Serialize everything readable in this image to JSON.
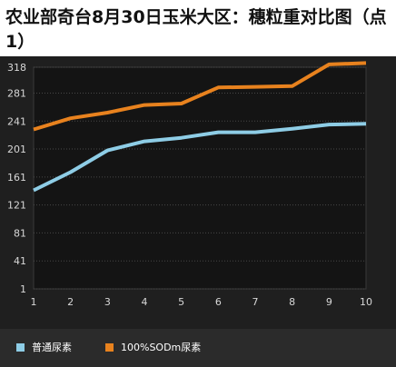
{
  "chart_data": {
    "type": "line",
    "title": "农业部奇台8月30日玉米大区：穗粒重对比图（点1）",
    "x": [
      1,
      2,
      3,
      4,
      5,
      6,
      7,
      8,
      9,
      10
    ],
    "xlabel": "",
    "ylabel": "",
    "ylim": [
      1,
      318
    ],
    "yticks": [
      1,
      41,
      81,
      121,
      161,
      201,
      241,
      281,
      318
    ],
    "grid": true,
    "legend_position": "bottom",
    "series": [
      {
        "name": "普通尿素",
        "color": "#8ecde6",
        "values": [
          142,
          168,
          199,
          212,
          217,
          225,
          225,
          230,
          236,
          237
        ]
      },
      {
        "name": "100%SODm尿素",
        "color": "#e8821e",
        "values": [
          229,
          245,
          253,
          264,
          266,
          289,
          290,
          291,
          322,
          324
        ]
      }
    ]
  }
}
